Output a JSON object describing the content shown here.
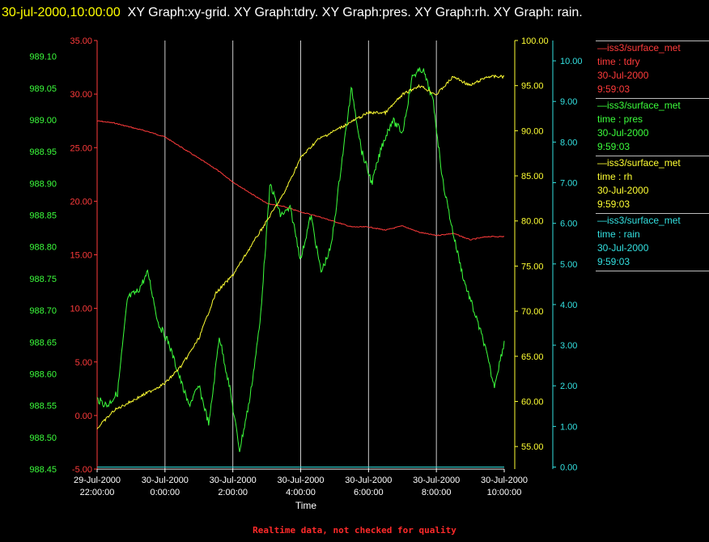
{
  "header": {
    "timestamp": "30-jul-2000,10:00:00",
    "title_rest": "XY Graph:xy-grid.  XY Graph:tdry.  XY Graph:pres.  XY Graph:rh.  XY Graph: rain."
  },
  "footer": {
    "note": "Realtime data, not checked for quality"
  },
  "colors": {
    "tdry": "#ff3b3b",
    "pres": "#3cff3c",
    "rh": "#ffff33",
    "rain": "#33e0e0",
    "grid": "#cccccc"
  },
  "legend": [
    {
      "source": "—iss3/surface_met",
      "var": "time : tdry",
      "date": "30-Jul-2000",
      "time": "9:59:03"
    },
    {
      "source": "—iss3/surface_met",
      "var": "time : pres",
      "date": "30-Jul-2000",
      "time": "9:59:03"
    },
    {
      "source": "—iss3/surface_met",
      "var": "time : rh",
      "date": "30-Jul-2000",
      "time": "9:59:03"
    },
    {
      "source": "—iss3/surface_met",
      "var": "time : rain",
      "date": "30-Jul-2000",
      "time": "9:59:03"
    }
  ],
  "chart_data": {
    "type": "line",
    "xlabel": "Time",
    "x_range": [
      "29-Jul-2000 22:00:00",
      "30-Jul-2000 10:00:00"
    ],
    "x_tick_labels": [
      [
        "29-Jul-2000",
        "22:00:00"
      ],
      [
        "30-Jul-2000",
        "0:00:00"
      ],
      [
        "30-Jul-2000",
        "2:00:00"
      ],
      [
        "30-Jul-2000",
        "4:00:00"
      ],
      [
        "30-Jul-2000",
        "6:00:00"
      ],
      [
        "30-Jul-2000",
        "8:00:00"
      ],
      [
        "30-Jul-2000",
        "10:00:00"
      ]
    ],
    "axes": {
      "tdry": {
        "ylim": [
          -5,
          35
        ],
        "ticks": [
          "-5.00",
          "0.00",
          "5.00",
          "10.00",
          "15.00",
          "20.00",
          "25.00",
          "30.00",
          "35.00"
        ]
      },
      "pres": {
        "ylim": [
          988.45,
          989.125
        ],
        "ticks": [
          "988.45",
          "988.50",
          "988.55",
          "988.60",
          "988.65",
          "988.70",
          "988.75",
          "988.80",
          "988.85",
          "988.90",
          "988.95",
          "989.00",
          "989.05",
          "989.10"
        ]
      },
      "rh": {
        "ylim": [
          52.5,
          100
        ],
        "ticks": [
          "55.00",
          "60.00",
          "65.00",
          "70.00",
          "75.00",
          "80.00",
          "85.00",
          "90.00",
          "95.00",
          "100.00"
        ]
      },
      "rain": {
        "ylim": [
          -0.05,
          10.5
        ],
        "ticks": [
          "0.00",
          "1.00",
          "2.00",
          "3.00",
          "4.00",
          "5.00",
          "6.00",
          "7.00",
          "8.00",
          "9.00",
          "10.00"
        ]
      }
    },
    "series": [
      {
        "name": "tdry",
        "x_hours": [
          0,
          0.5,
          1,
          1.5,
          2,
          2.5,
          3,
          3.5,
          4,
          4.5,
          5,
          5.5,
          6,
          6.5,
          7,
          7.5,
          8,
          8.5,
          9,
          9.5,
          10,
          10.5,
          11,
          11.5,
          12
        ],
        "values": [
          27.5,
          27.3,
          26.9,
          26.5,
          26,
          25,
          24,
          23,
          21.8,
          20.8,
          19.8,
          19.5,
          19,
          18.6,
          18.1,
          17.6,
          17.6,
          17.3,
          17.7,
          17.1,
          16.8,
          17,
          16.4,
          16.7,
          16.7
        ]
      },
      {
        "name": "pres",
        "x_hours": [
          0,
          0.3,
          0.6,
          0.9,
          1.2,
          1.5,
          1.8,
          2.1,
          2.4,
          2.7,
          3.0,
          3.3,
          3.6,
          3.9,
          4.2,
          4.5,
          4.8,
          5.1,
          5.4,
          5.7,
          6.0,
          6.3,
          6.6,
          6.9,
          7.2,
          7.5,
          7.8,
          8.1,
          8.4,
          8.7,
          9.0,
          9.3,
          9.6,
          9.9,
          10.2,
          10.5,
          10.8,
          11.1,
          11.4,
          11.7,
          12
        ],
        "values": [
          988.56,
          988.55,
          988.57,
          988.72,
          988.73,
          988.76,
          988.68,
          988.65,
          988.6,
          988.55,
          988.58,
          988.52,
          988.66,
          988.58,
          988.48,
          988.56,
          988.68,
          988.9,
          988.85,
          988.86,
          988.78,
          988.85,
          988.76,
          988.8,
          988.93,
          989.05,
          988.95,
          988.9,
          988.96,
          989.0,
          988.98,
          989.07,
          989.08,
          989.03,
          988.9,
          988.82,
          988.75,
          988.7,
          988.65,
          988.58,
          988.65
        ]
      },
      {
        "name": "rh",
        "x_hours": [
          0,
          0.5,
          1,
          1.5,
          2,
          2.5,
          3,
          3.5,
          4,
          4.5,
          5,
          5.5,
          6,
          6.5,
          7,
          7.5,
          8,
          8.5,
          9,
          9.5,
          10,
          10.5,
          11,
          11.5,
          12
        ],
        "values": [
          57,
          59,
          60,
          61,
          62,
          64,
          67,
          72,
          74,
          77,
          80,
          83,
          87,
          89,
          90,
          91,
          92,
          92,
          94,
          95,
          94,
          96,
          95,
          96,
          96
        ]
      },
      {
        "name": "rain",
        "x_hours": [
          0,
          12
        ],
        "values": [
          0,
          0
        ]
      }
    ]
  }
}
